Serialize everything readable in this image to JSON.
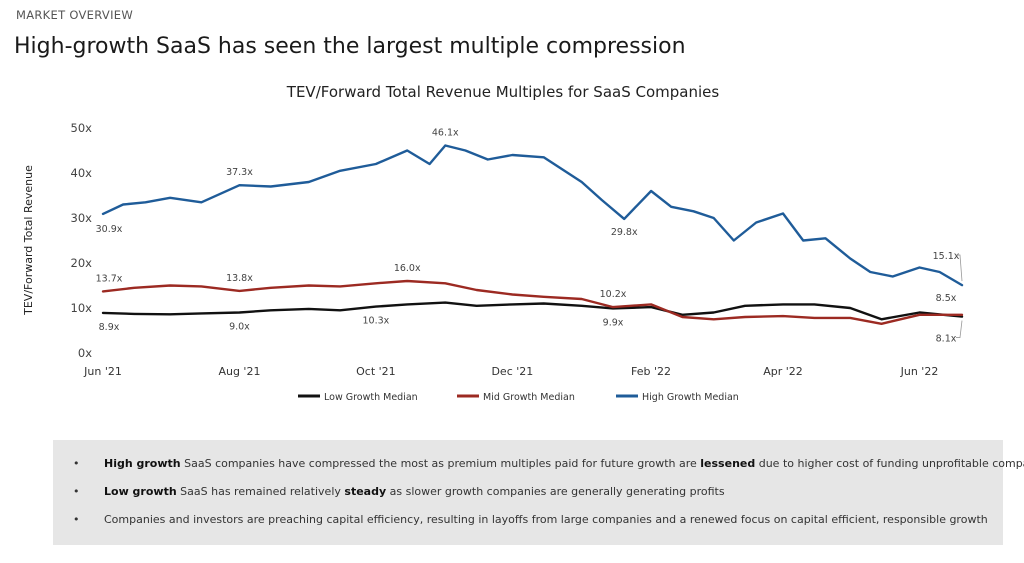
{
  "header": {
    "eyebrow": "MARKET OVERVIEW",
    "title": "High-growth SaaS has seen the largest multiple compression"
  },
  "chart_data": {
    "type": "line",
    "title": "TEV/Forward Total Revenue Multiples for SaaS Companies",
    "ylabel": "TEV/Forward Total Revenue",
    "xlabel": "",
    "ylim": [
      0,
      50
    ],
    "xlim": [
      "2021-06-01",
      "2022-06-20"
    ],
    "yticks": [
      0,
      10,
      20,
      30,
      40,
      50
    ],
    "ytick_labels": [
      "0x",
      "10x",
      "20x",
      "30x",
      "40x",
      "50x"
    ],
    "xticks": [
      "2021-06-01",
      "2021-08-01",
      "2021-10-01",
      "2021-12-01",
      "2022-02-01",
      "2022-04-01",
      "2022-06-01"
    ],
    "xtick_labels": [
      "Jun '21",
      "Aug '21",
      "Oct '21",
      "Dec '21",
      "Feb '22",
      "Apr '22",
      "Jun '22"
    ],
    "grid": false,
    "legend_position": "bottom",
    "series": [
      {
        "name": "Low Growth Median",
        "color": "#111111",
        "points": [
          [
            "2021-06-01",
            8.9
          ],
          [
            "2021-06-15",
            8.7
          ],
          [
            "2021-07-01",
            8.6
          ],
          [
            "2021-07-15",
            8.8
          ],
          [
            "2021-08-01",
            9.0
          ],
          [
            "2021-08-15",
            9.5
          ],
          [
            "2021-09-01",
            9.8
          ],
          [
            "2021-09-15",
            9.5
          ],
          [
            "2021-10-01",
            10.3
          ],
          [
            "2021-10-15",
            10.8
          ],
          [
            "2021-11-01",
            11.2
          ],
          [
            "2021-11-15",
            10.5
          ],
          [
            "2021-12-01",
            10.8
          ],
          [
            "2021-12-15",
            11.0
          ],
          [
            "2022-01-01",
            10.5
          ],
          [
            "2022-01-15",
            9.9
          ],
          [
            "2022-02-01",
            10.2
          ],
          [
            "2022-02-15",
            8.5
          ],
          [
            "2022-03-01",
            9.0
          ],
          [
            "2022-03-15",
            10.5
          ],
          [
            "2022-04-01",
            10.8
          ],
          [
            "2022-04-15",
            10.8
          ],
          [
            "2022-05-01",
            10.0
          ],
          [
            "2022-05-15",
            7.5
          ],
          [
            "2022-06-01",
            9.0
          ],
          [
            "2022-06-20",
            8.1
          ]
        ]
      },
      {
        "name": "Mid Growth Median",
        "color": "#9c2a22",
        "points": [
          [
            "2021-06-01",
            13.7
          ],
          [
            "2021-06-15",
            14.5
          ],
          [
            "2021-07-01",
            15.0
          ],
          [
            "2021-07-15",
            14.8
          ],
          [
            "2021-08-01",
            13.8
          ],
          [
            "2021-08-15",
            14.5
          ],
          [
            "2021-09-01",
            15.0
          ],
          [
            "2021-09-15",
            14.8
          ],
          [
            "2021-10-01",
            15.5
          ],
          [
            "2021-10-15",
            16.0
          ],
          [
            "2021-11-01",
            15.5
          ],
          [
            "2021-11-15",
            14.0
          ],
          [
            "2021-12-01",
            13.0
          ],
          [
            "2021-12-15",
            12.5
          ],
          [
            "2022-01-01",
            12.0
          ],
          [
            "2022-01-15",
            10.2
          ],
          [
            "2022-02-01",
            10.8
          ],
          [
            "2022-02-15",
            8.0
          ],
          [
            "2022-03-01",
            7.5
          ],
          [
            "2022-03-15",
            8.0
          ],
          [
            "2022-04-01",
            8.2
          ],
          [
            "2022-04-15",
            7.8
          ],
          [
            "2022-05-01",
            7.8
          ],
          [
            "2022-05-15",
            6.5
          ],
          [
            "2022-06-01",
            8.5
          ],
          [
            "2022-06-20",
            8.5
          ]
        ]
      },
      {
        "name": "High Growth Median",
        "color": "#1f5c99",
        "points": [
          [
            "2021-06-01",
            30.9
          ],
          [
            "2021-06-10",
            33.0
          ],
          [
            "2021-06-20",
            33.5
          ],
          [
            "2021-07-01",
            34.5
          ],
          [
            "2021-07-15",
            33.5
          ],
          [
            "2021-08-01",
            37.3
          ],
          [
            "2021-08-15",
            37.0
          ],
          [
            "2021-09-01",
            38.0
          ],
          [
            "2021-09-15",
            40.5
          ],
          [
            "2021-10-01",
            42.0
          ],
          [
            "2021-10-15",
            45.0
          ],
          [
            "2021-10-25",
            42.0
          ],
          [
            "2021-11-01",
            46.1
          ],
          [
            "2021-11-10",
            45.0
          ],
          [
            "2021-11-20",
            43.0
          ],
          [
            "2021-12-01",
            44.0
          ],
          [
            "2021-12-15",
            43.5
          ],
          [
            "2022-01-01",
            38.0
          ],
          [
            "2022-01-10",
            34.0
          ],
          [
            "2022-01-20",
            29.8
          ],
          [
            "2022-02-01",
            36.0
          ],
          [
            "2022-02-10",
            32.5
          ],
          [
            "2022-02-20",
            31.5
          ],
          [
            "2022-03-01",
            30.0
          ],
          [
            "2022-03-10",
            25.0
          ],
          [
            "2022-03-20",
            29.0
          ],
          [
            "2022-04-01",
            31.0
          ],
          [
            "2022-04-10",
            25.0
          ],
          [
            "2022-04-20",
            25.5
          ],
          [
            "2022-05-01",
            21.0
          ],
          [
            "2022-05-10",
            18.0
          ],
          [
            "2022-05-20",
            17.0
          ],
          [
            "2022-06-01",
            19.0
          ],
          [
            "2022-06-10",
            18.0
          ],
          [
            "2022-06-20",
            15.1
          ]
        ]
      }
    ],
    "annotations": [
      {
        "series": "High Growth Median",
        "date": "2021-06-01",
        "label": "30.9x"
      },
      {
        "series": "High Growth Median",
        "date": "2021-08-01",
        "label": "37.3x"
      },
      {
        "series": "High Growth Median",
        "date": "2021-11-01",
        "label": "46.1x"
      },
      {
        "series": "High Growth Median",
        "date": "2022-01-20",
        "label": "29.8x"
      },
      {
        "series": "High Growth Median",
        "date": "2022-06-20",
        "label": "15.1x"
      },
      {
        "series": "Mid Growth Median",
        "date": "2021-06-01",
        "label": "13.7x"
      },
      {
        "series": "Mid Growth Median",
        "date": "2021-08-01",
        "label": "13.8x"
      },
      {
        "series": "Mid Growth Median",
        "date": "2021-10-15",
        "label": "16.0x"
      },
      {
        "series": "Mid Growth Median",
        "date": "2022-01-15",
        "label": "10.2x"
      },
      {
        "series": "Mid Growth Median",
        "date": "2022-06-20",
        "label": "8.5x"
      },
      {
        "series": "Low Growth Median",
        "date": "2021-06-01",
        "label": "8.9x"
      },
      {
        "series": "Low Growth Median",
        "date": "2021-08-01",
        "label": "9.0x"
      },
      {
        "series": "Low Growth Median",
        "date": "2021-10-01",
        "label": "10.3x"
      },
      {
        "series": "Low Growth Median",
        "date": "2022-01-15",
        "label": "9.9x"
      },
      {
        "series": "Low Growth Median",
        "date": "2022-06-20",
        "label": "8.1x"
      }
    ]
  },
  "notes": [
    {
      "bullet": "•",
      "parts": [
        {
          "text": "High growth",
          "bold": true
        },
        {
          "text": " SaaS companies have compressed the most as premium multiples paid for future growth are "
        },
        {
          "text": "lessened",
          "bold": true
        },
        {
          "text": " due to higher cost of funding unprofitable companies"
        }
      ]
    },
    {
      "bullet": "•",
      "parts": [
        {
          "text": "Low growth",
          "bold": true
        },
        {
          "text": " SaaS has remained relatively "
        },
        {
          "text": "steady",
          "bold": true
        },
        {
          "text": " as slower growth companies are generally generating profits"
        }
      ]
    },
    {
      "bullet": "•",
      "parts": [
        {
          "text": "Companies and investors are preaching capital efficiency, resulting in layoffs from large companies and a renewed focus on capital efficient, responsible growth"
        }
      ]
    }
  ]
}
